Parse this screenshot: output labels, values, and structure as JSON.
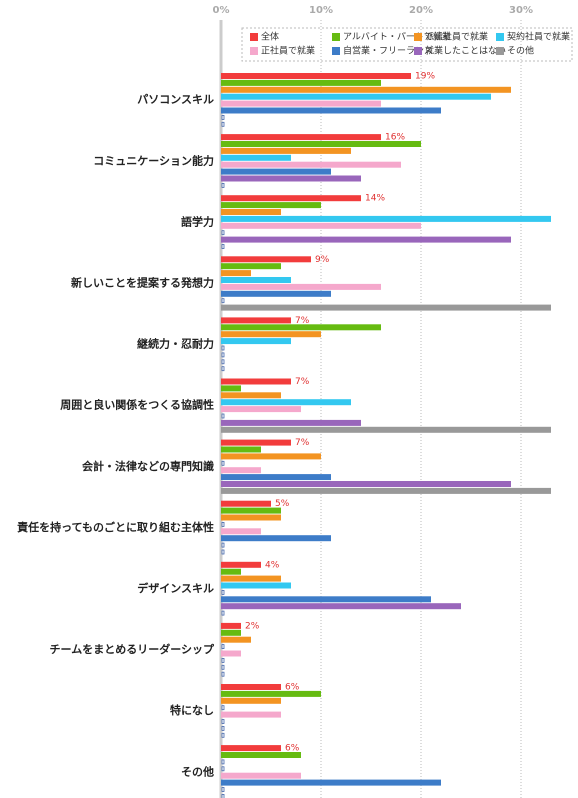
{
  "chart_data": {
    "type": "bar",
    "orientation": "horizontal",
    "categories": [
      "パソコンスキル",
      "コミュニケーション能力",
      "語学力",
      "新しいことを提案する発想力",
      "継続力・忍耐力",
      "周囲と良い関係をつくる協調性",
      "会計・法律などの専門知識",
      "責任を持ってものごとに取り組む主体性",
      "デザインスキル",
      "チームをまとめるリーダーシップ",
      "特になし",
      "その他"
    ],
    "series": [
      {
        "name": "全体",
        "color": "#f23c3c",
        "values": [
          19,
          16,
          14,
          9,
          7,
          7,
          7,
          5,
          4,
          2,
          6,
          6
        ],
        "value_labels": [
          "19%",
          "16%",
          "14%",
          "9%",
          "7%",
          "7%",
          "7%",
          "5%",
          "4%",
          "2%",
          "6%",
          "6%"
        ]
      },
      {
        "name": "アルバイト・パートで就業",
        "color": "#66bb11",
        "values": [
          16,
          20,
          10,
          6,
          16,
          2,
          4,
          6,
          2,
          2,
          10,
          8
        ]
      },
      {
        "name": "派遣社員で就業",
        "color": "#f39422",
        "values": [
          29,
          13,
          6,
          3,
          10,
          6,
          10,
          6,
          6,
          3,
          6,
          0
        ]
      },
      {
        "name": "契約社員で就業",
        "color": "#33c8f0",
        "values": [
          27,
          7,
          33,
          7,
          7,
          13,
          0,
          0,
          7,
          0,
          0,
          0
        ]
      },
      {
        "name": "正社員で就業",
        "color": "#f5a8cc",
        "values": [
          16,
          18,
          20,
          16,
          0,
          8,
          4,
          4,
          0,
          2,
          6,
          8
        ]
      },
      {
        "name": "自営業・フリーランス",
        "color": "#3d7cc8",
        "values": [
          22,
          11,
          0,
          11,
          0,
          0,
          11,
          11,
          21,
          0,
          0,
          22
        ]
      },
      {
        "name": "就業したことはない",
        "color": "#9966bb",
        "values": [
          0,
          14,
          29,
          0,
          0,
          14,
          29,
          0,
          24,
          0,
          0,
          0
        ]
      },
      {
        "name": "その他",
        "color": "#999999",
        "values": [
          0,
          0,
          0,
          33,
          0,
          33,
          33,
          0,
          0,
          0,
          0,
          0
        ]
      }
    ],
    "xlim": [
      0,
      35
    ],
    "xticks": [
      {
        "value": 0,
        "label": "0%"
      },
      {
        "value": 10,
        "label": "10%"
      },
      {
        "value": 20,
        "label": "20%"
      },
      {
        "value": 30,
        "label": "30%"
      }
    ],
    "grid": true,
    "legend": "top-right"
  }
}
